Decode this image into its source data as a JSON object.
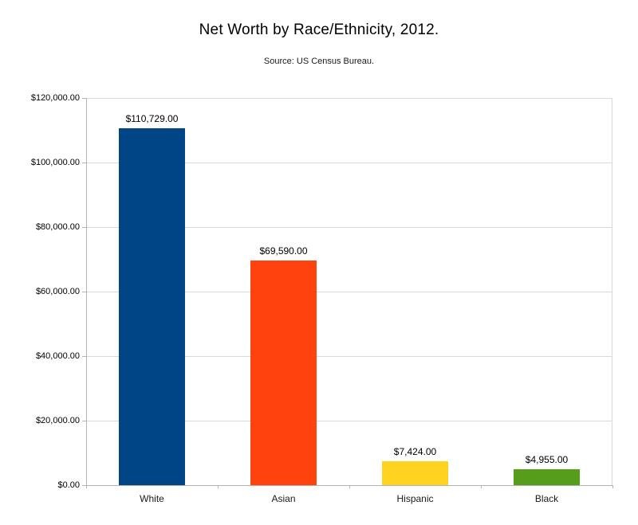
{
  "page": {
    "background_color": "#ffffff"
  },
  "chart_data": {
    "type": "bar",
    "title": "Net Worth by Race/Ethnicity, 2012.",
    "subtitle": "Source: US Census Bureau.",
    "categories": [
      "White",
      "Asian",
      "Hispanic",
      "Black"
    ],
    "values": [
      110729,
      69590,
      7424,
      4955
    ],
    "value_labels": [
      "$110,729.00",
      "$69,590.00",
      "$7,424.00",
      "$4,955.00"
    ],
    "bar_colors": [
      "#004586",
      "#FF420E",
      "#FFD320",
      "#579D1C"
    ],
    "xlabel": "",
    "ylabel": "",
    "ylim": [
      0,
      120000
    ],
    "ytick_interval": 20000,
    "ytick_labels": [
      "$0.00",
      "$20,000.00",
      "$40,000.00",
      "$60,000.00",
      "$80,000.00",
      "$100,000.00",
      "$120,000.00"
    ],
    "grid": "horizontal",
    "legend_position": "none",
    "gridline_color": "#d9d9d9",
    "axis_color": "#b3b3b3",
    "text_color": "#000000"
  }
}
